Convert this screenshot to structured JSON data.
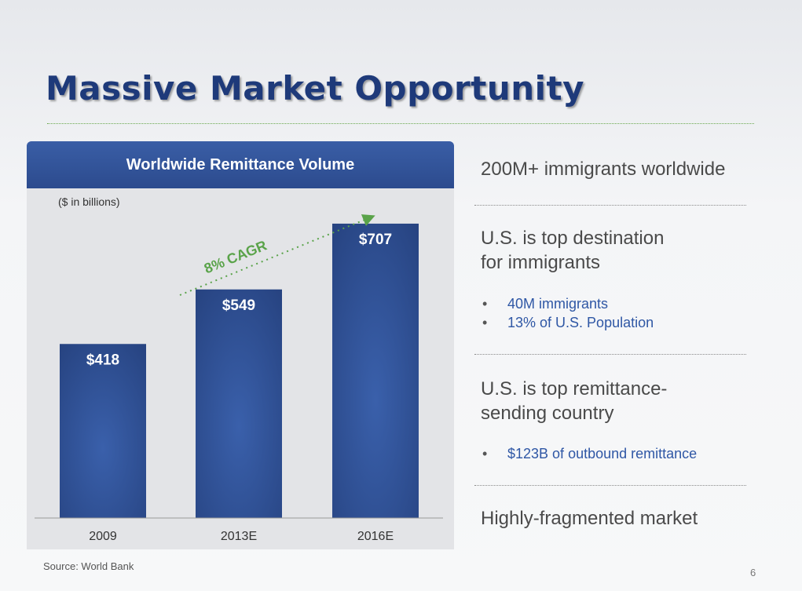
{
  "slide": {
    "title": "Massive Market Opportunity",
    "source": "Source: World Bank",
    "page_number": "6"
  },
  "chart_data": {
    "type": "bar",
    "title": "Worldwide Remittance Volume",
    "unit_note": "($ in billions)",
    "categories": [
      "2009",
      "2013E",
      "2016E"
    ],
    "values": [
      418,
      549,
      707
    ],
    "data_labels": [
      "$418",
      "$549",
      "$707"
    ],
    "annotation": "8% CAGR",
    "bar_color": "#2f4f96",
    "annotation_color": "#5aa34a",
    "ylim": [
      0,
      820
    ],
    "grid": false,
    "legend": "none"
  },
  "right_panel": {
    "sections": [
      {
        "heading": [
          "200M+ immigrants worldwide"
        ],
        "bullets": []
      },
      {
        "heading": [
          "U.S. is top destination",
          "for immigrants"
        ],
        "bullets": [
          "40M immigrants",
          "13% of U.S. Population"
        ]
      },
      {
        "heading": [
          "U.S. is top remittance-",
          "sending country"
        ],
        "bullets": [
          "$123B of outbound remittance"
        ]
      },
      {
        "heading": [
          "Highly-fragmented market"
        ],
        "bullets": []
      }
    ],
    "bullet_glyph": "•",
    "text_color": "#4a4a4a",
    "bullet_color": "#2f57a5"
  }
}
